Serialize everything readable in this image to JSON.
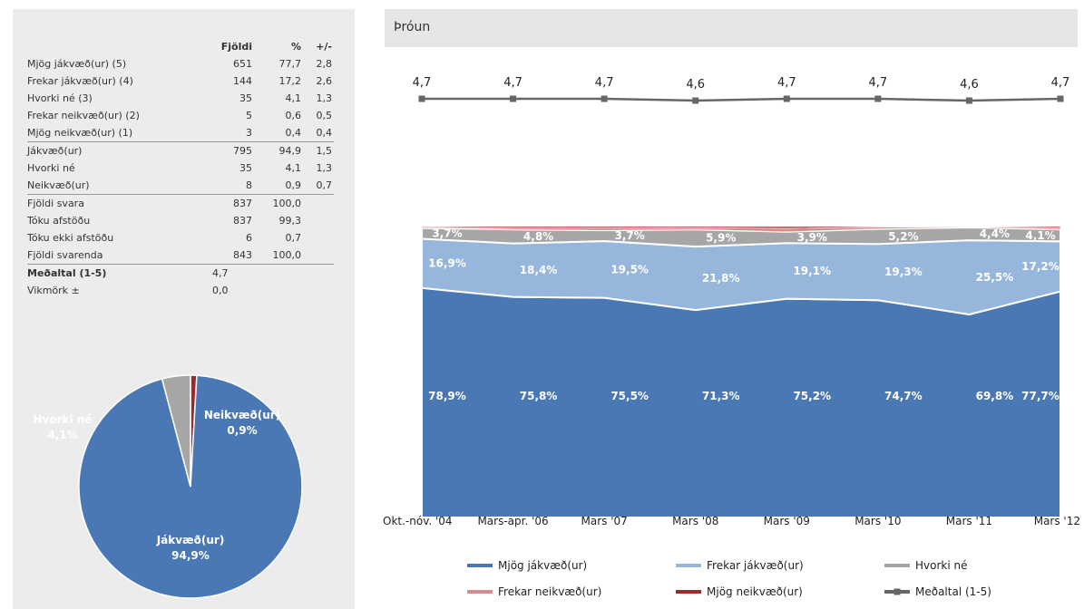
{
  "table": {
    "headers": [
      "",
      "Fjöldi",
      "%",
      "+/-"
    ],
    "rows": [
      [
        "Mjög jákvæð(ur) (5)",
        "651",
        "77,7",
        "2,8"
      ],
      [
        "Frekar jákvæð(ur) (4)",
        "144",
        "17,2",
        "2,6"
      ],
      [
        "Hvorki né (3)",
        "35",
        "4,1",
        "1,3"
      ],
      [
        "Frekar neikvæð(ur) (2)",
        "5",
        "0,6",
        "0,5"
      ],
      [
        "Mjög neikvæð(ur) (1)",
        "3",
        "0,4",
        "0,4"
      ],
      [
        "Jákvæð(ur)",
        "795",
        "94,9",
        "1,5"
      ],
      [
        "Hvorki né",
        "35",
        "4,1",
        "1,3"
      ],
      [
        "Neikvæð(ur)",
        "8",
        "0,9",
        "0,7"
      ],
      [
        "Fjöldi svara",
        "837",
        "100,0",
        ""
      ],
      [
        "Tóku afstöðu",
        "837",
        "99,3",
        ""
      ],
      [
        "Tóku ekki afstöðu",
        "6",
        "0,7",
        ""
      ],
      [
        "Fjöldi svarenda",
        "843",
        "100,0",
        ""
      ],
      [
        "Meðaltal (1-5)",
        "4,7",
        "",
        ""
      ],
      [
        "Vikmörk ±",
        "0,0",
        "",
        ""
      ]
    ]
  },
  "right_title": "Þróun",
  "colors": {
    "mjog_jakv": "#4a78b5",
    "frekar_jakv": "#97b6dc",
    "hvorki": "#a6a6a6",
    "frekar_neikv": "#d98b8b",
    "mjog_neikv": "#9c2a2a",
    "medaltal": "#666666"
  },
  "chart_data": [
    {
      "type": "pie",
      "slices": [
        {
          "name": "Jákvæð(ur)",
          "value": 94.9,
          "label": "Jákvæð(ur)",
          "pct": "94,9%",
          "color": "#4a78b5"
        },
        {
          "name": "Hvorki né",
          "value": 4.1,
          "label": "Hvorki né",
          "pct": "4,1%",
          "color": "#a6a6a6"
        },
        {
          "name": "Neikvæð(ur)",
          "value": 0.9,
          "label": "Neikvæð(ur)",
          "pct": "0,9%",
          "color": "#9c2a2a"
        }
      ]
    },
    {
      "type": "area",
      "stacked": true,
      "categories": [
        "Okt.-nóv. '04",
        "Mars-apr. '06",
        "Mars '07",
        "Mars '08",
        "Mars '09",
        "Mars '10",
        "Mars '11",
        "Mars '12"
      ],
      "series": [
        {
          "name": "Mjög jákvæð(ur)",
          "values": [
            78.9,
            75.8,
            75.5,
            71.3,
            75.2,
            74.7,
            69.8,
            77.7
          ],
          "labels": [
            "78,9%",
            "75,8%",
            "75,5%",
            "71,3%",
            "75,2%",
            "74,7%",
            "69,8%",
            "77,7%"
          ]
        },
        {
          "name": "Frekar jákvæð(ur)",
          "values": [
            16.9,
            18.4,
            19.5,
            21.8,
            19.1,
            19.3,
            25.5,
            17.2
          ],
          "labels": [
            "16,9%",
            "18,4%",
            "19,5%",
            "21,8%",
            "19,1%",
            "19,3%",
            "25,5%",
            "17,2%"
          ]
        },
        {
          "name": "Hvorki né",
          "values": [
            3.7,
            4.8,
            3.7,
            5.9,
            3.9,
            5.2,
            4.4,
            4.1
          ],
          "labels": [
            "3,7%",
            "4,8%",
            "3,7%",
            "5,9%",
            "3,9%",
            "5,2%",
            "4,4%",
            "4,1%"
          ]
        },
        {
          "name": "Frekar neikvæð(ur)",
          "values": [
            0.3,
            0.5,
            0.8,
            0.6,
            1.2,
            0.6,
            0.2,
            0.6
          ]
        },
        {
          "name": "Mjög neikvæð(ur)",
          "values": [
            0.2,
            0.5,
            0.5,
            0.4,
            0.6,
            0.2,
            0.1,
            0.4
          ]
        }
      ],
      "line": {
        "name": "Meðaltal (1-5)",
        "values": [
          4.7,
          4.7,
          4.7,
          4.6,
          4.7,
          4.7,
          4.6,
          4.7
        ],
        "labels": [
          "4,7",
          "4,7",
          "4,7",
          "4,6",
          "4,7",
          "4,7",
          "4,6",
          "4,7"
        ]
      },
      "legend": [
        {
          "name": "Mjög jákvæð(ur)",
          "kind": "line",
          "color": "#4a78b5"
        },
        {
          "name": "Frekar jákvæð(ur)",
          "kind": "line",
          "color": "#97b6dc"
        },
        {
          "name": "Hvorki né",
          "kind": "line",
          "color": "#a6a6a6"
        },
        {
          "name": "Frekar neikvæð(ur)",
          "kind": "line",
          "color": "#d98b8b"
        },
        {
          "name": "Mjög neikvæð(ur)",
          "kind": "line",
          "color": "#9c2a2a"
        },
        {
          "name": "Meðaltal (1-5)",
          "kind": "marker-line",
          "color": "#666666"
        }
      ],
      "legend_position": "bottom"
    }
  ]
}
